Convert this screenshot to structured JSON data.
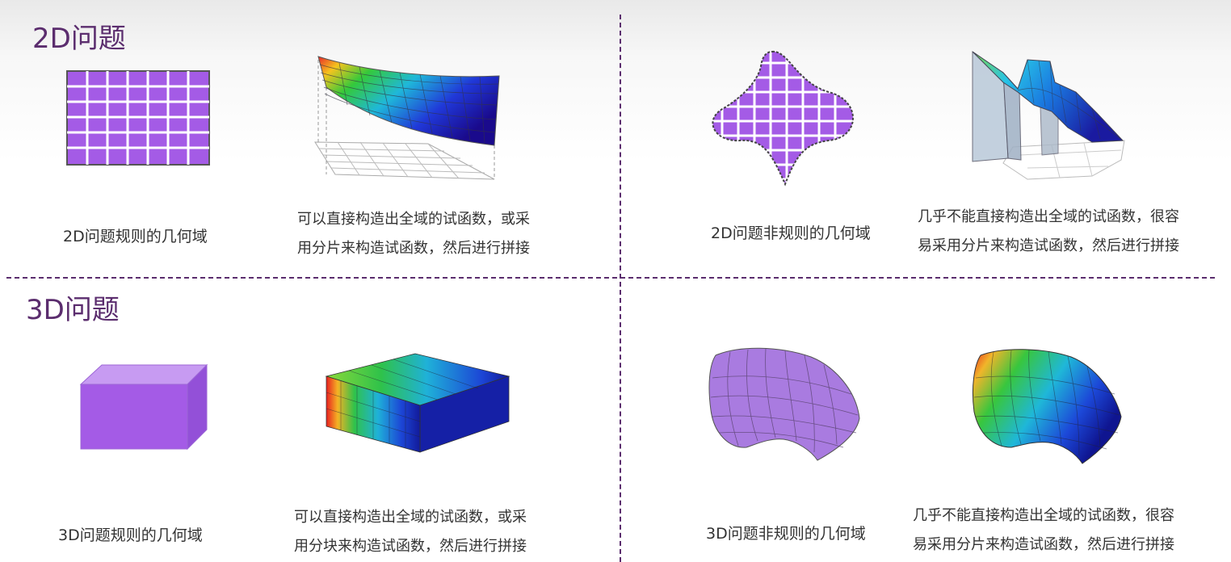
{
  "sections": {
    "d2_title": "2D问题",
    "d3_title": "3D问题"
  },
  "panels": {
    "d2_regular_caption": "2D问题规则的几何域",
    "d2_regular_desc_line1": "可以直接构造出全域的试函数，或采",
    "d2_regular_desc_line2": "用分片来构造试函数，然后进行拼接",
    "d2_irregular_caption": "2D问题非规则的几何域",
    "d2_irregular_desc_line1": "几乎不能直接构造出全域的试函数，很容",
    "d2_irregular_desc_line2": "易采用分片来构造试函数，然后进行拼接",
    "d3_regular_caption": "3D问题规则的几何域",
    "d3_regular_desc_line1": "可以直接构造出全域的试函数，或采",
    "d3_regular_desc_line2": "用分块来构造试函数，然后进行拼接",
    "d3_irregular_caption": "3D问题非规则的几何域",
    "d3_irregular_desc_line1": "几乎不能直接构造出全域的试函数，很容",
    "d3_irregular_desc_line2": "易采用分片来构造试函数，然后进行拼接"
  },
  "colors": {
    "accent": "#5b2d6e",
    "domain_fill": "#a45be6",
    "domain_stroke": "#555555"
  }
}
